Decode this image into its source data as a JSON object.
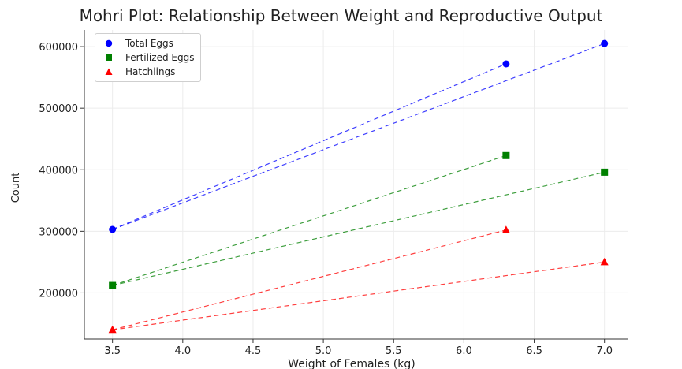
{
  "chart_data": {
    "type": "scatter",
    "title": "Mohri Plot: Relationship Between Weight and Reproductive Output",
    "xlabel": "Weight of Females (kg)",
    "ylabel": "Count",
    "xlim": [
      3.3,
      7.17
    ],
    "ylim": [
      125000,
      627000
    ],
    "xticks": [
      "3.5",
      "4.0",
      "4.5",
      "5.0",
      "5.5",
      "6.0",
      "6.5",
      "7.0"
    ],
    "yticks": [
      "200000",
      "300000",
      "400000",
      "500000",
      "600000"
    ],
    "grid": true,
    "legend_position": "top-left",
    "line_style": "dashed connecting lines",
    "series": [
      {
        "name": "Total Eggs",
        "color": "#0000ff",
        "marker": "circle",
        "points": [
          [
            3.5,
            303000
          ],
          [
            6.3,
            572000
          ],
          [
            7.0,
            605000
          ]
        ],
        "segments": [
          [
            [
              3.5,
              303000
            ],
            [
              6.3,
              572000
            ]
          ],
          [
            [
              3.5,
              303000
            ],
            [
              7.0,
              605000
            ]
          ]
        ]
      },
      {
        "name": "Fertilized Eggs",
        "color": "#008000",
        "marker": "square",
        "points": [
          [
            3.5,
            212000
          ],
          [
            6.3,
            423000
          ],
          [
            7.0,
            396000
          ]
        ],
        "segments": [
          [
            [
              3.5,
              212000
            ],
            [
              6.3,
              423000
            ]
          ],
          [
            [
              3.5,
              212000
            ],
            [
              7.0,
              396000
            ]
          ]
        ]
      },
      {
        "name": "Hatchlings",
        "color": "#ff0000",
        "marker": "triangle",
        "points": [
          [
            3.5,
            140000
          ],
          [
            6.3,
            302000
          ],
          [
            7.0,
            250000
          ]
        ],
        "segments": [
          [
            [
              3.5,
              140000
            ],
            [
              6.3,
              302000
            ]
          ],
          [
            [
              3.5,
              140000
            ],
            [
              7.0,
              250000
            ]
          ]
        ]
      }
    ]
  }
}
